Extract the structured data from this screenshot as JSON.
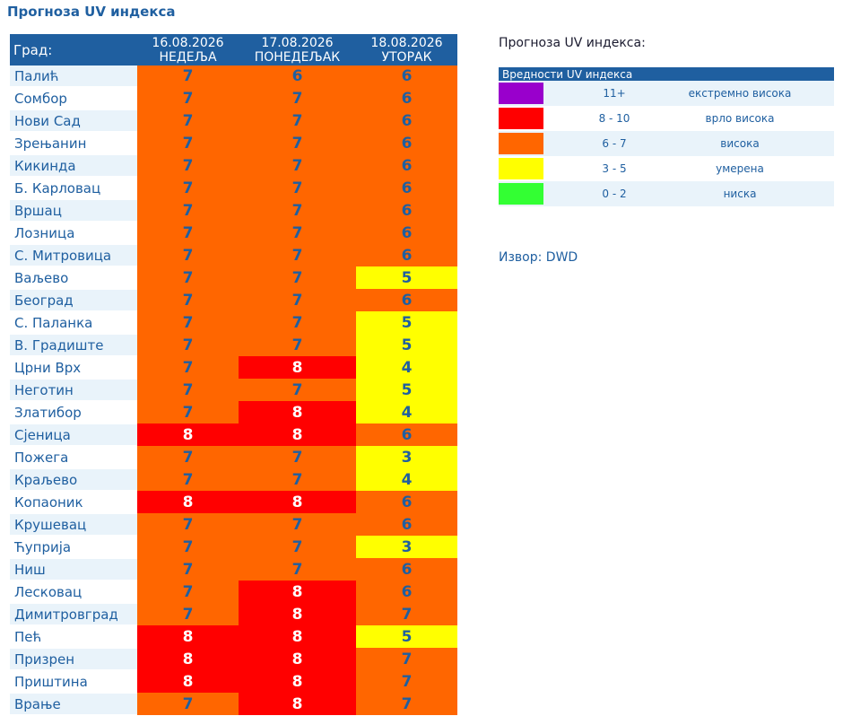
{
  "page": {
    "title": "Прогноза UV индекса"
  },
  "table": {
    "city_header": "Град:",
    "days": [
      {
        "date": "16.08.2026",
        "weekday": "НЕДЕЉА"
      },
      {
        "date": "17.08.2026",
        "weekday": "ПОНЕДЕЉАК"
      },
      {
        "date": "18.08.2026",
        "weekday": "УТОРАК"
      }
    ],
    "rows": [
      {
        "city": "Палић",
        "values": [
          "7",
          "6",
          "6"
        ]
      },
      {
        "city": "Сомбор",
        "values": [
          "7",
          "7",
          "6"
        ]
      },
      {
        "city": "Нови Сад",
        "values": [
          "7",
          "7",
          "6"
        ]
      },
      {
        "city": "Зрењанин",
        "values": [
          "7",
          "7",
          "6"
        ]
      },
      {
        "city": "Кикинда",
        "values": [
          "7",
          "7",
          "6"
        ]
      },
      {
        "city": "Б. Карловац",
        "values": [
          "7",
          "7",
          "6"
        ]
      },
      {
        "city": "Вршац",
        "values": [
          "7",
          "7",
          "6"
        ]
      },
      {
        "city": "Лозница",
        "values": [
          "7",
          "7",
          "6"
        ]
      },
      {
        "city": "С. Митровица",
        "values": [
          "7",
          "7",
          "6"
        ]
      },
      {
        "city": "Ваљево",
        "values": [
          "7",
          "7",
          "5"
        ]
      },
      {
        "city": "Београд",
        "values": [
          "7",
          "7",
          "6"
        ]
      },
      {
        "city": "С. Паланка",
        "values": [
          "7",
          "7",
          "5"
        ]
      },
      {
        "city": "В. Градиште",
        "values": [
          "7",
          "7",
          "5"
        ]
      },
      {
        "city": "Црни Врх",
        "values": [
          "7",
          "8",
          "4"
        ]
      },
      {
        "city": "Неготин",
        "values": [
          "7",
          "7",
          "5"
        ]
      },
      {
        "city": "Златибор",
        "values": [
          "7",
          "8",
          "4"
        ]
      },
      {
        "city": "Сјеница",
        "values": [
          "8",
          "8",
          "6"
        ]
      },
      {
        "city": "Пожега",
        "values": [
          "7",
          "7",
          "3"
        ]
      },
      {
        "city": "Краљево",
        "values": [
          "7",
          "7",
          "4"
        ]
      },
      {
        "city": "Копаоник",
        "values": [
          "8",
          "8",
          "6"
        ]
      },
      {
        "city": "Крушевац",
        "values": [
          "7",
          "7",
          "6"
        ]
      },
      {
        "city": "Ћуприја",
        "values": [
          "7",
          "7",
          "3"
        ]
      },
      {
        "city": "Ниш",
        "values": [
          "7",
          "7",
          "6"
        ]
      },
      {
        "city": "Лесковац",
        "values": [
          "7",
          "8",
          "6"
        ]
      },
      {
        "city": "Димитровград",
        "values": [
          "7",
          "8",
          "7"
        ]
      },
      {
        "city": "Пећ",
        "values": [
          "8",
          "8",
          "5"
        ]
      },
      {
        "city": "Призрен",
        "values": [
          "8",
          "8",
          "7"
        ]
      },
      {
        "city": "Приштина",
        "values": [
          "8",
          "8",
          "7"
        ]
      },
      {
        "city": "Врање",
        "values": [
          "7",
          "8",
          "7"
        ]
      }
    ]
  },
  "legend": {
    "title": "Прогноза UV индекса:",
    "header": "Вредности UV индекса",
    "items": [
      {
        "range": "11+",
        "label": "екстремно висока",
        "color": "#9900cc"
      },
      {
        "range": "8 - 10",
        "label": "врло висока",
        "color": "#ff0000"
      },
      {
        "range": "6 - 7",
        "label": "висока",
        "color": "#ff6600"
      },
      {
        "range": "3 - 5",
        "label": "умерена",
        "color": "#ffff00"
      },
      {
        "range": "0 - 2",
        "label": "ниска",
        "color": "#33ff33"
      }
    ]
  },
  "source": "Извор: DWD",
  "colors": {
    "header_bg": "#1f5fa0",
    "text_blue": "#1f5fa0",
    "on_orange": "#1f5fa0",
    "on_red": "#ffffff",
    "on_yellow": "#1f5fa0"
  }
}
